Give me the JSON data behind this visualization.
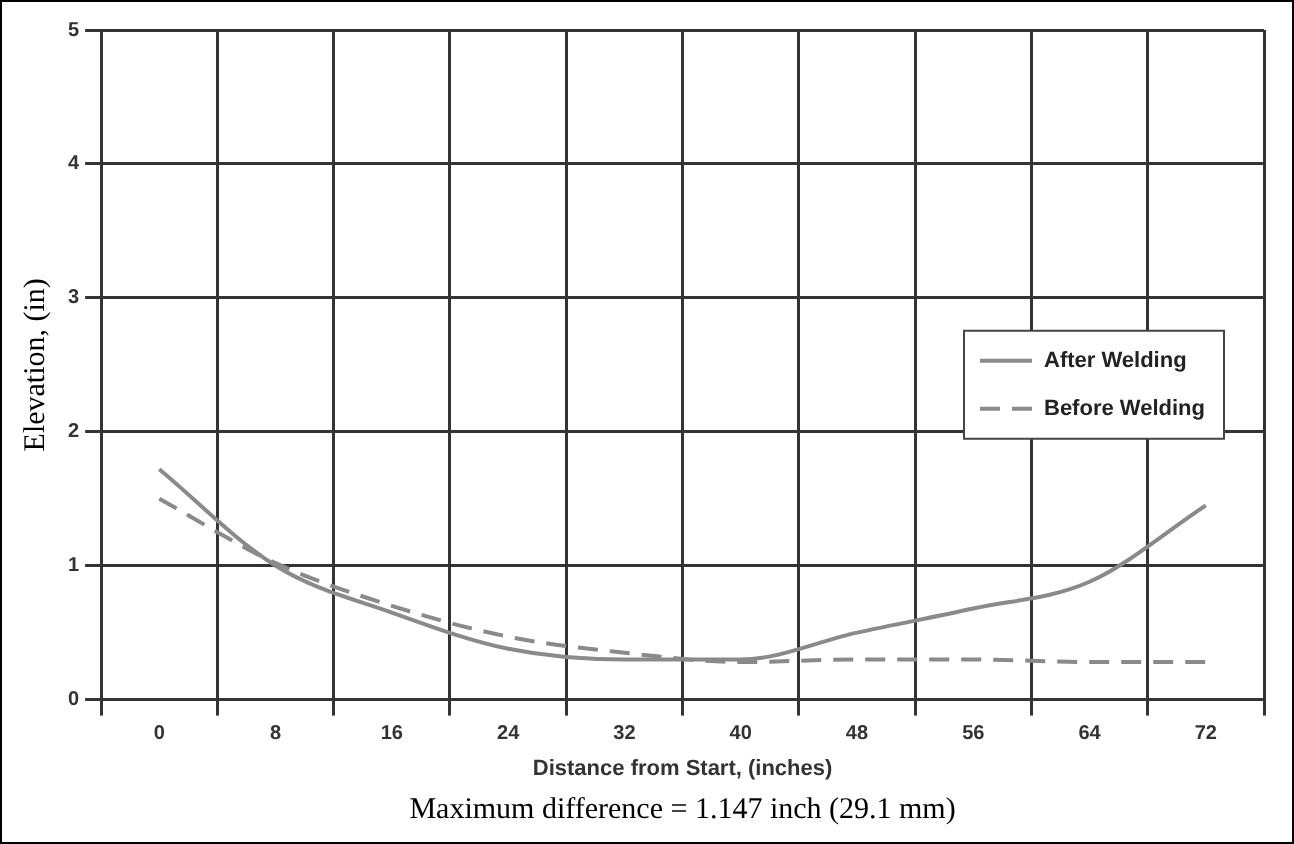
{
  "chart_data": {
    "type": "line",
    "xlabel": "Distance from Start, (inches)",
    "ylabel": "Elevation, (in)",
    "categories": [
      "0",
      "8",
      "16",
      "24",
      "32",
      "40",
      "48",
      "56",
      "64",
      "72"
    ],
    "series": [
      {
        "name": "After Welding",
        "color": "#8a8a8a",
        "line_style": "solid",
        "values": [
          1.72,
          1.0,
          0.65,
          0.38,
          0.3,
          0.3,
          0.5,
          0.68,
          0.88,
          1.45
        ]
      },
      {
        "name": "Before Welding",
        "color": "#8a8a8a",
        "line_style": "dashed",
        "values": [
          1.5,
          1.02,
          0.7,
          0.47,
          0.35,
          0.28,
          0.3,
          0.3,
          0.28,
          0.28
        ]
      }
    ],
    "ylim": [
      0,
      5
    ],
    "yticks": [
      0,
      1,
      2,
      3,
      4,
      5
    ],
    "grid": true,
    "legend": "right",
    "marker": "none",
    "annotations": [
      "Maximum difference = 1.147 inch (29.1 mm)"
    ]
  }
}
